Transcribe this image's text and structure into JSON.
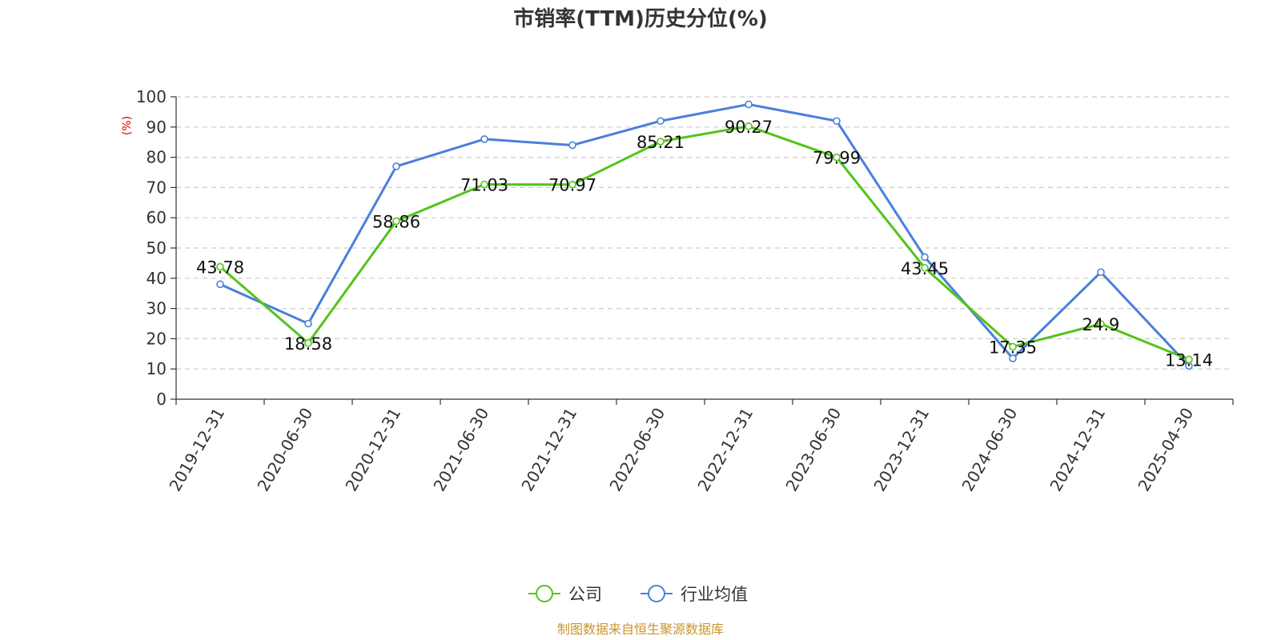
{
  "chart_data": {
    "type": "line",
    "title": "市销率(TTM)历史分位(%)",
    "ylabel": "(%)",
    "xlabel": "",
    "ylim": [
      0,
      100
    ],
    "yticks": [
      0,
      10,
      20,
      30,
      40,
      50,
      60,
      70,
      80,
      90,
      100
    ],
    "grid": "horizontal-dashed",
    "legend_position": "bottom-center",
    "categories": [
      "2019-12-31",
      "2020-06-30",
      "2020-12-31",
      "2021-06-30",
      "2021-12-31",
      "2022-06-30",
      "2022-12-31",
      "2023-06-30",
      "2023-12-31",
      "2024-06-30",
      "2024-12-31",
      "2025-04-30"
    ],
    "series": [
      {
        "name": "公司",
        "color": "#52c41a",
        "values": [
          43.78,
          18.58,
          58.86,
          71.03,
          70.97,
          85.21,
          90.27,
          79.99,
          43.45,
          17.35,
          24.9,
          13.14
        ],
        "labels": [
          "43.78",
          "18.58",
          "58.86",
          "71.03",
          "70.97",
          "85.21",
          "90.27",
          "79.99",
          "43.45",
          "17.35",
          "24.9",
          "13.14"
        ]
      },
      {
        "name": "行业均值",
        "color": "#4a7fdc",
        "values": [
          38,
          25,
          77,
          86,
          84,
          92,
          97.5,
          92,
          47,
          13.5,
          42,
          11
        ]
      }
    ],
    "source": "制图数据来自恒生聚源数据库"
  }
}
